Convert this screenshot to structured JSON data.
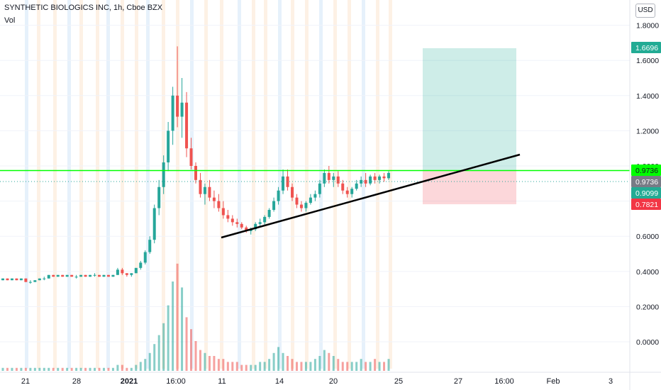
{
  "header": {
    "title": "SYNTHETIC BIOLOGICS INC, 1h, Cboe BZX",
    "volume_label": "Vol",
    "currency": "USD"
  },
  "chart_data": {
    "type": "candlestick",
    "symbol": "SYNTHETIC BIOLOGICS INC",
    "interval": "1h",
    "exchange": "Cboe BZX",
    "price_axis": {
      "position": "right",
      "ticks": [
        1.8,
        1.6,
        1.4,
        1.2,
        1.0,
        0.8,
        0.6,
        0.4,
        0.2,
        0.0
      ],
      "tick_labels": [
        "1.8000",
        "1.6000",
        "1.4000",
        "1.2000",
        "1.0000",
        "0.8000",
        "0.6000",
        "0.4000",
        "0.2000",
        "0.0000"
      ]
    },
    "time_axis": {
      "tick_labels": [
        "21",
        "28",
        "2021",
        "16:00",
        "11",
        "14",
        "20",
        "25",
        "27",
        "16:00",
        "Feb",
        "3"
      ]
    },
    "price_markers": [
      {
        "label": "1.6696",
        "value": 1.6696,
        "color": "#22ab94"
      },
      {
        "label": "0.9736",
        "value": 0.9736,
        "color": "#00ff00"
      },
      {
        "label": "0.9736",
        "value": 0.9736,
        "color": "#787b86"
      },
      {
        "label": "0.9099",
        "value": 0.9099,
        "color": "#22ab94"
      },
      {
        "label": "0.7821",
        "value": 0.7821,
        "color": "#f23645"
      }
    ],
    "horizontal_line": {
      "value": 0.9736,
      "color": "#00ff00"
    },
    "trendline": {
      "from": {
        "x": "11",
        "y": 0.59
      },
      "to": {
        "x": "16:00",
        "y": 1.06
      },
      "color": "#000000"
    },
    "position_tool": {
      "entry": 0.9736,
      "target": 1.6696,
      "stop": 0.7821,
      "profit_color": "#22ab94",
      "loss_color": "#f23645"
    },
    "colors": {
      "up": "#26a69a",
      "down": "#ef5350"
    },
    "candles": [
      [
        0.35,
        0.36,
        0.35,
        0.36
      ],
      [
        0.36,
        0.36,
        0.35,
        0.35
      ],
      [
        0.35,
        0.36,
        0.35,
        0.36
      ],
      [
        0.36,
        0.36,
        0.35,
        0.35
      ],
      [
        0.35,
        0.36,
        0.35,
        0.36
      ],
      [
        0.36,
        0.36,
        0.34,
        0.34
      ],
      [
        0.34,
        0.35,
        0.33,
        0.34
      ],
      [
        0.34,
        0.35,
        0.34,
        0.35
      ],
      [
        0.35,
        0.36,
        0.35,
        0.36
      ],
      [
        0.36,
        0.37,
        0.35,
        0.36
      ],
      [
        0.36,
        0.38,
        0.36,
        0.38
      ],
      [
        0.38,
        0.38,
        0.37,
        0.37
      ],
      [
        0.37,
        0.38,
        0.37,
        0.38
      ],
      [
        0.38,
        0.38,
        0.37,
        0.37
      ],
      [
        0.37,
        0.38,
        0.37,
        0.38
      ],
      [
        0.38,
        0.38,
        0.37,
        0.37
      ],
      [
        0.37,
        0.38,
        0.36,
        0.37
      ],
      [
        0.37,
        0.38,
        0.37,
        0.38
      ],
      [
        0.38,
        0.38,
        0.37,
        0.37
      ],
      [
        0.37,
        0.38,
        0.37,
        0.38
      ],
      [
        0.38,
        0.39,
        0.37,
        0.38
      ],
      [
        0.38,
        0.38,
        0.37,
        0.37
      ],
      [
        0.37,
        0.38,
        0.37,
        0.38
      ],
      [
        0.38,
        0.38,
        0.37,
        0.37
      ],
      [
        0.37,
        0.38,
        0.37,
        0.38
      ],
      [
        0.38,
        0.42,
        0.38,
        0.41
      ],
      [
        0.41,
        0.42,
        0.38,
        0.39
      ],
      [
        0.39,
        0.39,
        0.37,
        0.38
      ],
      [
        0.38,
        0.39,
        0.37,
        0.39
      ],
      [
        0.39,
        0.42,
        0.39,
        0.42
      ],
      [
        0.42,
        0.46,
        0.41,
        0.45
      ],
      [
        0.45,
        0.52,
        0.44,
        0.51
      ],
      [
        0.51,
        0.6,
        0.5,
        0.58
      ],
      [
        0.58,
        0.78,
        0.56,
        0.76
      ],
      [
        0.76,
        0.92,
        0.72,
        0.88
      ],
      [
        0.88,
        1.06,
        0.84,
        1.02
      ],
      [
        1.02,
        1.25,
        0.97,
        1.2
      ],
      [
        1.2,
        1.45,
        1.12,
        1.4
      ],
      [
        1.4,
        1.68,
        1.22,
        1.28
      ],
      [
        1.28,
        1.5,
        1.16,
        1.36
      ],
      [
        1.36,
        1.42,
        1.05,
        1.1
      ],
      [
        1.1,
        1.16,
        0.98,
        1.0
      ],
      [
        1.0,
        1.02,
        0.9,
        0.92
      ],
      [
        0.92,
        0.96,
        0.82,
        0.84
      ],
      [
        0.84,
        0.9,
        0.78,
        0.88
      ],
      [
        0.88,
        0.92,
        0.8,
        0.82
      ],
      [
        0.82,
        0.86,
        0.76,
        0.8
      ],
      [
        0.8,
        0.84,
        0.74,
        0.76
      ],
      [
        0.76,
        0.8,
        0.7,
        0.72
      ],
      [
        0.72,
        0.75,
        0.68,
        0.7
      ],
      [
        0.7,
        0.72,
        0.66,
        0.68
      ],
      [
        0.68,
        0.7,
        0.65,
        0.67
      ],
      [
        0.67,
        0.68,
        0.64,
        0.65
      ],
      [
        0.65,
        0.66,
        0.62,
        0.63
      ],
      [
        0.63,
        0.65,
        0.61,
        0.64
      ],
      [
        0.64,
        0.68,
        0.63,
        0.67
      ],
      [
        0.67,
        0.7,
        0.65,
        0.68
      ],
      [
        0.68,
        0.72,
        0.66,
        0.71
      ],
      [
        0.71,
        0.76,
        0.7,
        0.75
      ],
      [
        0.75,
        0.82,
        0.74,
        0.8
      ],
      [
        0.8,
        0.88,
        0.78,
        0.86
      ],
      [
        0.86,
        0.98,
        0.84,
        0.94
      ],
      [
        0.94,
        0.98,
        0.86,
        0.88
      ],
      [
        0.88,
        0.9,
        0.8,
        0.82
      ],
      [
        0.82,
        0.84,
        0.76,
        0.78
      ],
      [
        0.78,
        0.8,
        0.74,
        0.76
      ],
      [
        0.76,
        0.8,
        0.74,
        0.79
      ],
      [
        0.79,
        0.84,
        0.78,
        0.82
      ],
      [
        0.82,
        0.86,
        0.8,
        0.84
      ],
      [
        0.84,
        0.92,
        0.82,
        0.9
      ],
      [
        0.9,
        0.98,
        0.88,
        0.96
      ],
      [
        0.96,
        1.0,
        0.9,
        0.92
      ],
      [
        0.92,
        0.96,
        0.88,
        0.94
      ],
      [
        0.94,
        0.97,
        0.88,
        0.9
      ],
      [
        0.9,
        0.92,
        0.84,
        0.86
      ],
      [
        0.86,
        0.88,
        0.82,
        0.84
      ],
      [
        0.84,
        0.88,
        0.82,
        0.87
      ],
      [
        0.87,
        0.92,
        0.86,
        0.9
      ],
      [
        0.9,
        0.94,
        0.88,
        0.92
      ],
      [
        0.92,
        0.96,
        0.88,
        0.9
      ],
      [
        0.9,
        0.95,
        0.89,
        0.94
      ],
      [
        0.94,
        0.96,
        0.9,
        0.92
      ],
      [
        0.92,
        0.95,
        0.9,
        0.94
      ],
      [
        0.94,
        0.96,
        0.91,
        0.93
      ],
      [
        0.93,
        0.97,
        0.92,
        0.96
      ]
    ],
    "volumes": [
      0.01,
      0.01,
      0.01,
      0.01,
      0.01,
      0.01,
      0.01,
      0.01,
      0.01,
      0.01,
      0.01,
      0.01,
      0.01,
      0.01,
      0.01,
      0.01,
      0.01,
      0.01,
      0.01,
      0.01,
      0.01,
      0.01,
      0.01,
      0.01,
      0.01,
      0.02,
      0.02,
      0.01,
      0.01,
      0.02,
      0.03,
      0.04,
      0.06,
      0.09,
      0.12,
      0.16,
      0.22,
      0.3,
      0.36,
      0.28,
      0.18,
      0.14,
      0.1,
      0.07,
      0.06,
      0.05,
      0.05,
      0.04,
      0.04,
      0.03,
      0.03,
      0.03,
      0.02,
      0.02,
      0.02,
      0.02,
      0.03,
      0.03,
      0.04,
      0.06,
      0.08,
      0.06,
      0.05,
      0.04,
      0.03,
      0.03,
      0.03,
      0.03,
      0.04,
      0.05,
      0.07,
      0.06,
      0.05,
      0.04,
      0.03,
      0.03,
      0.03,
      0.03,
      0.04,
      0.03,
      0.03,
      0.04,
      0.03,
      0.03,
      0.04
    ]
  }
}
